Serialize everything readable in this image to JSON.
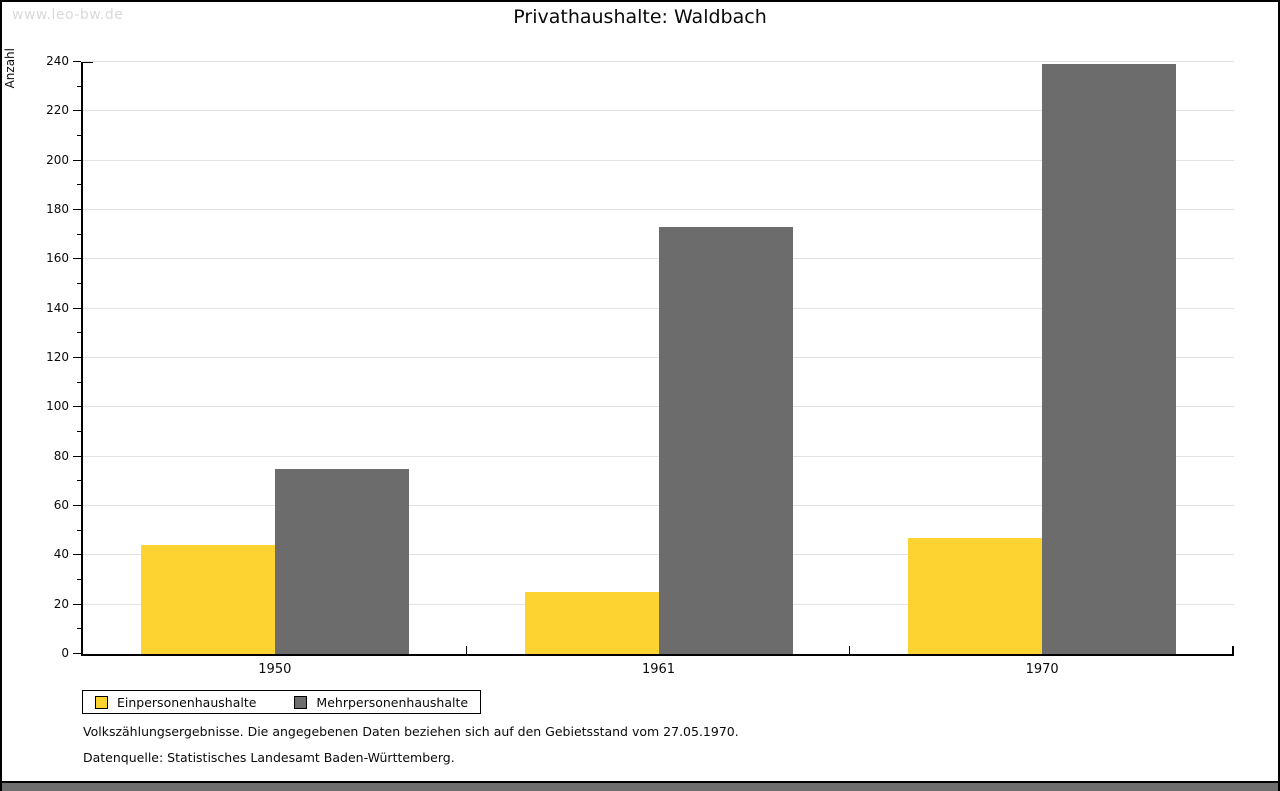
{
  "watermark": "www.leo-bw.de",
  "chart_data": {
    "type": "bar",
    "title": "Privathaushalte: Waldbach",
    "ylabel": "Anzahl",
    "categories": [
      "1950",
      "1961",
      "1970"
    ],
    "series": [
      {
        "name": "Einpersonenhaushalte",
        "color": "#fcd330",
        "values": [
          44,
          25,
          47
        ]
      },
      {
        "name": "Mehrpersonenhaushalte",
        "color": "#6c6c6c",
        "values": [
          75,
          173,
          239
        ]
      }
    ],
    "ylim": [
      0,
      240
    ],
    "ytick_step": 20,
    "ytick_minor_step": 10,
    "grid": true,
    "legend_position": "bottom-left"
  },
  "footnotes": [
    "Volkszählungsergebnisse. Die angegebenen Daten beziehen sich auf den Gebietsstand vom 27.05.1970.",
    "Datenquelle: Statistisches Landesamt Baden-Württemberg."
  ],
  "colors": {
    "axis": "#000000",
    "gridline": "#e2e2e2",
    "watermark": "#d9d9d9",
    "bottom_bar": "#6e6e6e",
    "background": "#ffffff"
  }
}
